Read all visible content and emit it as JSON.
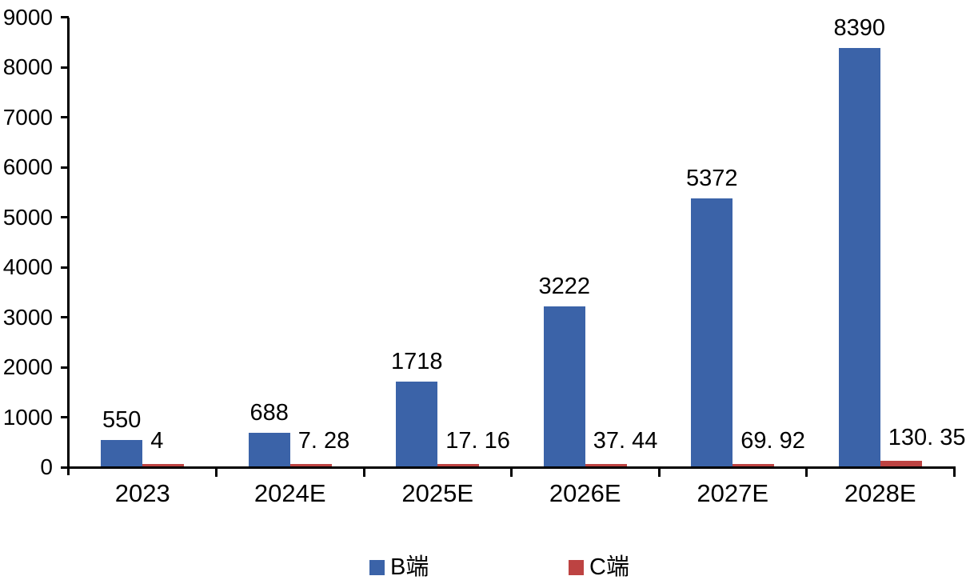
{
  "chart_data": {
    "type": "bar",
    "title": "",
    "xlabel": "",
    "ylabel": "",
    "categories": [
      "2023",
      "2024E",
      "2025E",
      "2026E",
      "2027E",
      "2028E"
    ],
    "series": [
      {
        "name": "B端",
        "color": "#3B63A8",
        "values": [
          550,
          688,
          1718,
          3222,
          5372,
          8390
        ],
        "labels": [
          "550",
          "688",
          "1718",
          "3222",
          "5372",
          "8390"
        ]
      },
      {
        "name": "C端",
        "color": "#BD4342",
        "values": [
          4,
          7.28,
          17.16,
          37.44,
          69.92,
          130.35
        ],
        "labels": [
          "4",
          "7. 28",
          "17. 16",
          "37. 44",
          "69. 92",
          "130. 35"
        ]
      }
    ],
    "ylim": [
      0,
      9000
    ],
    "yticks": [
      0,
      1000,
      2000,
      3000,
      4000,
      5000,
      6000,
      7000,
      8000,
      9000
    ],
    "grid": false,
    "legend_position": "bottom",
    "axis_color": "#000000",
    "text_color": "#000000",
    "background_color": "#FFFFFF"
  }
}
